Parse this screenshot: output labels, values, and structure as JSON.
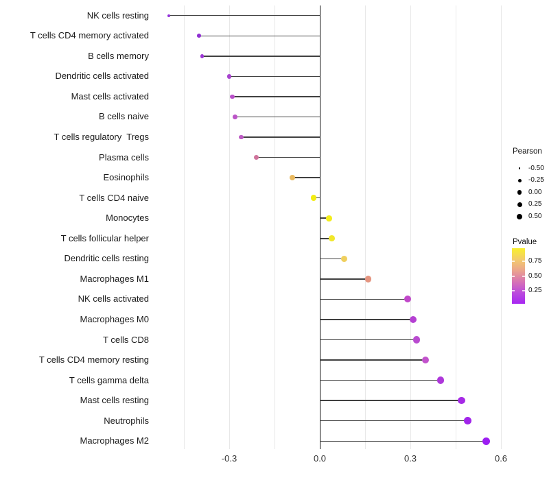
{
  "figure_background": "#ffffff",
  "chart_data": {
    "type": "scatter",
    "subtype": "lollipop",
    "title": "",
    "xlabel": "",
    "ylabel": "",
    "xlim": [
      -0.5525,
      0.6025
    ],
    "x_ticks": [
      {
        "value": -0.3,
        "label": "-0.3"
      },
      {
        "value": 0.0,
        "label": "0.0"
      },
      {
        "value": 0.3,
        "label": "0.3"
      },
      {
        "value": 0.6,
        "label": "0.6"
      }
    ],
    "grid_x_values": [
      -0.45,
      -0.3,
      -0.15,
      0.0,
      0.15,
      0.3,
      0.45,
      0.6
    ],
    "grid_on": true,
    "zero_line_x": 0.0,
    "size_encoding": "Pearson",
    "color_encoding": "Pvalue",
    "rows": [
      {
        "label": "NK cells resting",
        "pearson": -0.5,
        "pvalue_est": 0.1,
        "color": "#9232d8"
      },
      {
        "label": "T cells CD4 memory activated",
        "pearson": -0.4,
        "pvalue_est": 0.09,
        "color": "#9030d2"
      },
      {
        "label": "B cells memory",
        "pearson": -0.39,
        "pvalue_est": 0.11,
        "color": "#9c36d4"
      },
      {
        "label": "Dendritic cells activated",
        "pearson": -0.3,
        "pvalue_est": 0.16,
        "color": "#a843cf"
      },
      {
        "label": "Mast cells activated",
        "pearson": -0.29,
        "pvalue_est": 0.2,
        "color": "#b94fc9"
      },
      {
        "label": "B cells naive",
        "pearson": -0.28,
        "pvalue_est": 0.21,
        "color": "#bb54c7"
      },
      {
        "label": "T cells regulatory  Tregs",
        "pearson": -0.26,
        "pvalue_est": 0.25,
        "color": "#bd5ac4"
      },
      {
        "label": "Plasma cells",
        "pearson": -0.21,
        "pvalue_est": 0.42,
        "color": "#d0749c"
      },
      {
        "label": "Eosinophils",
        "pearson": -0.09,
        "pvalue_est": 0.66,
        "color": "#e9b95f"
      },
      {
        "label": "T cells CD4 naive",
        "pearson": -0.02,
        "pvalue_est": 0.95,
        "color": "#f3ec13"
      },
      {
        "label": "Monocytes",
        "pearson": 0.03,
        "pvalue_est": 0.94,
        "color": "#f3ed1a"
      },
      {
        "label": "T cells follicular helper",
        "pearson": 0.04,
        "pvalue_est": 0.9,
        "color": "#f1e72b"
      },
      {
        "label": "Dendritic cells resting",
        "pearson": 0.08,
        "pvalue_est": 0.72,
        "color": "#efcf5d"
      },
      {
        "label": "Macrophages M1",
        "pearson": 0.16,
        "pvalue_est": 0.5,
        "color": "#e4947f"
      },
      {
        "label": "NK cells activated",
        "pearson": 0.29,
        "pvalue_est": 0.27,
        "color": "#c148ca"
      },
      {
        "label": "Macrophages M0",
        "pearson": 0.31,
        "pvalue_est": 0.21,
        "color": "#b440d2"
      },
      {
        "label": "T cells CD8",
        "pearson": 0.32,
        "pvalue_est": 0.23,
        "color": "#b94bd0"
      },
      {
        "label": "T cells CD4 memory resting",
        "pearson": 0.35,
        "pvalue_est": 0.28,
        "color": "#c252cc"
      },
      {
        "label": "T cells gamma delta",
        "pearson": 0.4,
        "pvalue_est": 0.17,
        "color": "#ae37da"
      },
      {
        "label": "Mast cells resting",
        "pearson": 0.47,
        "pvalue_est": 0.12,
        "color": "#a62ae6"
      },
      {
        "label": "Neutrophils",
        "pearson": 0.49,
        "pvalue_est": 0.1,
        "color": "#a125ea"
      },
      {
        "label": "Macrophages M2",
        "pearson": 0.55,
        "pvalue_est": 0.05,
        "color": "#9c1df2"
      }
    ],
    "legend": {
      "size": {
        "title": "Pearson",
        "entries": [
          {
            "label": "-0.50",
            "diameter": 2.5
          },
          {
            "label": "-0.25",
            "diameter": 5.0
          },
          {
            "label": "0.00",
            "diameter": 6.3
          },
          {
            "label": "0.25",
            "diameter": 7.0
          },
          {
            "label": "0.50",
            "diameter": 8.0
          }
        ],
        "dot_color": "#000000"
      },
      "colorbar": {
        "title": "Pvalue",
        "tick_labels": [
          "0.75",
          "0.50",
          "0.25"
        ],
        "gradient_stops": [
          "#f9f02c",
          "#f3cc6b",
          "#eba48d",
          "#d873b4",
          "#bb4cdc",
          "#a727f2"
        ]
      },
      "position": "right"
    }
  }
}
